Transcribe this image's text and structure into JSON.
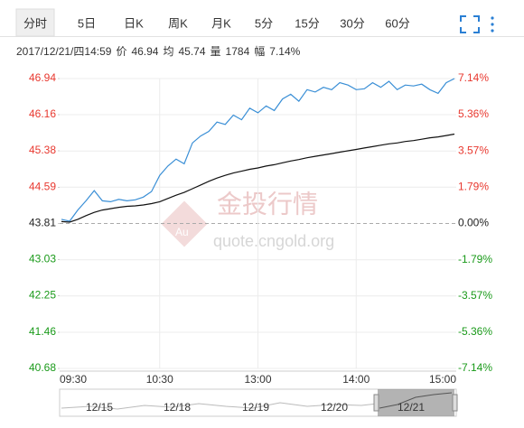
{
  "tabs": [
    "分时",
    "5日",
    "日K",
    "周K",
    "月K",
    "5分",
    "15分",
    "30分",
    "60分"
  ],
  "info": {
    "date": "2017/12/21/四14:59",
    "price_label": "价",
    "price": 46.94,
    "avg_label": "均",
    "avg": 45.74,
    "volume_label": "量",
    "volume": 1784,
    "change_label": "幅",
    "change": "7.14%"
  },
  "chart_data": {
    "type": "line",
    "x": [
      "09:30",
      "09:35",
      "09:40",
      "09:45",
      "09:50",
      "09:55",
      "10:00",
      "10:05",
      "10:10",
      "10:15",
      "10:20",
      "10:25",
      "10:30",
      "10:35",
      "10:40",
      "10:45",
      "10:50",
      "10:55",
      "11:00",
      "11:05",
      "11:10",
      "11:15",
      "11:20",
      "11:25",
      "11:30",
      "13:05",
      "13:10",
      "13:15",
      "13:20",
      "13:25",
      "13:30",
      "13:35",
      "13:40",
      "13:45",
      "13:50",
      "13:55",
      "14:00",
      "14:05",
      "14:10",
      "14:15",
      "14:20",
      "14:25",
      "14:30",
      "14:35",
      "14:40",
      "14:45",
      "14:50",
      "14:55",
      "15:00"
    ],
    "series": [
      {
        "color": "#3a8fd6",
        "values": [
          43.9,
          43.86,
          44.1,
          44.3,
          44.52,
          44.3,
          44.28,
          44.33,
          44.3,
          44.32,
          44.38,
          44.5,
          44.85,
          45.05,
          45.2,
          45.1,
          45.55,
          45.7,
          45.8,
          46.0,
          45.95,
          46.15,
          46.05,
          46.3,
          46.2,
          46.35,
          46.25,
          46.5,
          46.6,
          46.45,
          46.7,
          46.65,
          46.75,
          46.7,
          46.85,
          46.8,
          46.7,
          46.72,
          46.85,
          46.75,
          46.88,
          46.7,
          46.8,
          46.78,
          46.82,
          46.7,
          46.62,
          46.85,
          46.94
        ]
      },
      {
        "color": "#111111",
        "values": [
          43.85,
          43.84,
          43.9,
          43.98,
          44.05,
          44.1,
          44.13,
          44.16,
          44.18,
          44.19,
          44.21,
          44.24,
          44.28,
          44.35,
          44.42,
          44.48,
          44.56,
          44.64,
          44.72,
          44.79,
          44.85,
          44.9,
          44.94,
          44.98,
          45.01,
          45.05,
          45.08,
          45.12,
          45.16,
          45.19,
          45.23,
          45.26,
          45.29,
          45.32,
          45.35,
          45.38,
          45.41,
          45.44,
          45.47,
          45.5,
          45.53,
          45.55,
          45.58,
          45.6,
          45.63,
          45.66,
          45.68,
          45.71,
          45.74
        ]
      }
    ],
    "ylim": [
      40.68,
      46.94
    ],
    "yticks": [
      46.94,
      46.16,
      45.38,
      44.59,
      43.81,
      43.03,
      42.25,
      41.46,
      40.68
    ],
    "y2lim": [
      -7.14,
      7.14
    ],
    "y2ticks": [
      {
        "value": 7.14,
        "label": "7.14%"
      },
      {
        "value": 5.36,
        "label": "5.36%"
      },
      {
        "value": 3.57,
        "label": "3.57%"
      },
      {
        "value": 1.79,
        "label": "1.79%"
      },
      {
        "value": 0,
        "label": "0.00%"
      },
      {
        "value": -1.79,
        "label": "-1.79%"
      },
      {
        "value": -3.57,
        "label": "-3.57%"
      },
      {
        "value": -5.36,
        "label": "-5.36%"
      },
      {
        "value": -7.14,
        "label": "-7.14%"
      }
    ],
    "xticks": [
      "09:30",
      "10:30",
      "13:00",
      "14:00",
      "15:00"
    ],
    "grid": true,
    "watermark": {
      "title": "金投行情",
      "url": "quote.cngold.org"
    }
  },
  "navigator": {
    "dates": [
      "12/15",
      "12/18",
      "12/19",
      "12/20",
      "12/21"
    ]
  }
}
